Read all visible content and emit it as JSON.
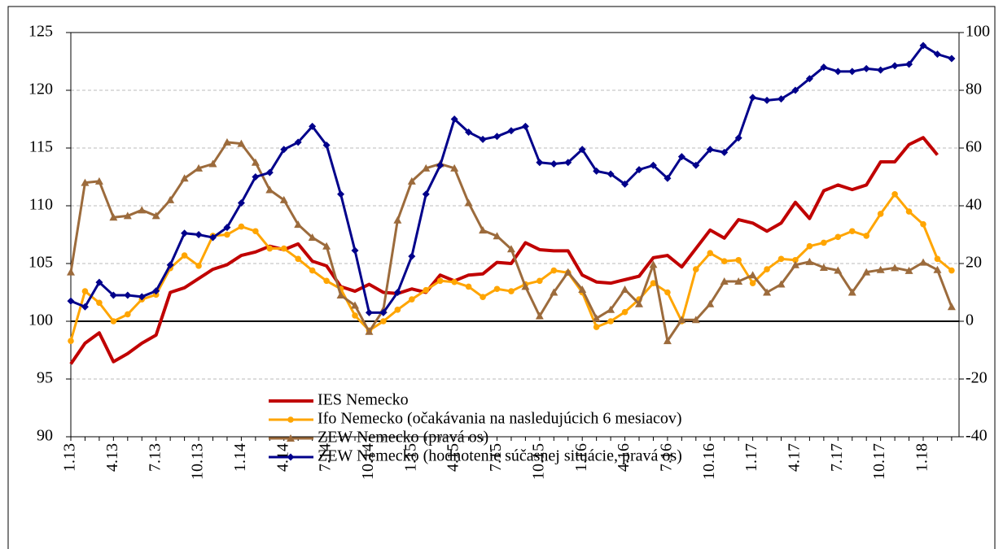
{
  "chart_data": {
    "type": "line",
    "categories": [
      "1.13",
      null,
      null,
      "4.13",
      null,
      null,
      "7.13",
      null,
      null,
      "10.13",
      null,
      null,
      "1.14",
      null,
      null,
      "4.14",
      null,
      null,
      "7.14",
      null,
      null,
      "10.14",
      null,
      null,
      "1.15",
      null,
      null,
      "4.15",
      null,
      null,
      "7.15",
      null,
      null,
      "10.15",
      null,
      null,
      "1.16",
      null,
      null,
      "4.16",
      null,
      null,
      "7.16",
      null,
      null,
      "10.16",
      null,
      null,
      "1.17",
      null,
      null,
      "4.17",
      null,
      null,
      "7.17",
      null,
      null,
      "10.17",
      null,
      null,
      "1.18",
      null,
      null
    ],
    "ylim": [
      90,
      125
    ],
    "yticks": [
      90,
      95,
      100,
      105,
      110,
      115,
      120,
      125
    ],
    "y2lim": [
      -40,
      100
    ],
    "y2ticks": [
      -40,
      -20,
      0,
      20,
      40,
      60,
      80,
      100
    ],
    "grid": true,
    "series": [
      {
        "name": "IES Nemecko",
        "color": "#c00000",
        "marker": "none",
        "values": [
          96.3,
          98.1,
          99.0,
          96.5,
          97.2,
          98.1,
          98.8,
          102.5,
          102.9,
          103.7,
          104.5,
          104.9,
          105.7,
          106.0,
          106.5,
          106.2,
          106.7,
          105.2,
          104.8,
          103.0,
          102.6,
          103.2,
          102.5,
          102.4,
          102.8,
          102.5,
          104.0,
          103.5,
          104.0,
          104.1,
          105.1,
          105.0,
          106.8,
          106.2,
          106.1,
          106.1,
          104.0,
          103.4,
          103.3,
          103.6,
          103.9,
          105.5,
          105.7,
          104.7,
          106.3,
          107.9,
          107.2,
          108.8,
          108.5,
          107.8,
          108.5,
          110.3,
          108.9,
          111.3,
          111.8,
          111.4,
          111.8,
          113.8,
          113.8,
          115.3,
          115.9,
          114.4,
          null
        ]
      },
      {
        "name": "Ifo Nemecko (očakávania na nasledujúcich 6 mesiacov)",
        "color": "#ffa500",
        "marker": "circle",
        "values": [
          98.3,
          102.6,
          101.6,
          100.0,
          100.6,
          101.9,
          102.3,
          104.6,
          105.7,
          104.8,
          107.4,
          107.5,
          108.2,
          107.8,
          106.3,
          106.3,
          105.4,
          104.4,
          103.5,
          102.8,
          100.5,
          99.2,
          100.0,
          101.0,
          101.9,
          102.7,
          103.5,
          103.4,
          103.0,
          102.1,
          102.8,
          102.6,
          103.2,
          103.5,
          104.4,
          104.2,
          102.5,
          99.5,
          100.0,
          100.8,
          101.9,
          103.3,
          102.5,
          100.0,
          104.5,
          105.9,
          105.2,
          105.3,
          103.3,
          104.5,
          105.4,
          105.3,
          106.5,
          106.8,
          107.3,
          107.8,
          107.4,
          109.3,
          111.0,
          109.5,
          108.4,
          105.4,
          104.4
        ]
      },
      {
        "name": "ZEW Nemecko (pravá os)",
        "color": "#9c6b3c",
        "marker": "triangle",
        "axis": "y2",
        "values": [
          17,
          48,
          48.5,
          36,
          36.5,
          38.5,
          36.5,
          42,
          49.5,
          53,
          54.5,
          62,
          61.5,
          55,
          45.5,
          42,
          33.5,
          29,
          26,
          9,
          5.5,
          -3.6,
          4,
          35,
          48.5,
          53,
          54.5,
          53,
          41,
          31.5,
          29.5,
          25,
          12,
          1.8,
          10,
          17,
          11,
          1,
          4,
          11,
          6,
          19.6,
          -6.8,
          0.5,
          0.5,
          6,
          13.8,
          13.8,
          16,
          10,
          12.8,
          19.5,
          20.6,
          18.6,
          17.6,
          10,
          17,
          17.8,
          18.5,
          17.5,
          20.4,
          17.8,
          5
        ]
      },
      {
        "name": "ZEW Nemecko (hodnotenie súčasnej situácie, pravá os)",
        "color": "#00008b",
        "marker": "diamond",
        "axis": "y2",
        "values": [
          7,
          5,
          13.5,
          9,
          9,
          8.5,
          10.5,
          19.5,
          30.5,
          30,
          29,
          32.5,
          41,
          50,
          51.5,
          59.5,
          62,
          67.5,
          61,
          44,
          24.5,
          3,
          3,
          10,
          22.5,
          44,
          54,
          70,
          65.5,
          63,
          64,
          66,
          67.5,
          55,
          54.5,
          55,
          59.5,
          52,
          51,
          47.5,
          52.5,
          54,
          49.5,
          57,
          54,
          59.5,
          58.5,
          63.5,
          77.5,
          76.5,
          77,
          80,
          84,
          88,
          86.5,
          86.5,
          87.5,
          87,
          88.5,
          89,
          95.5,
          92.5,
          91
        ]
      }
    ]
  }
}
